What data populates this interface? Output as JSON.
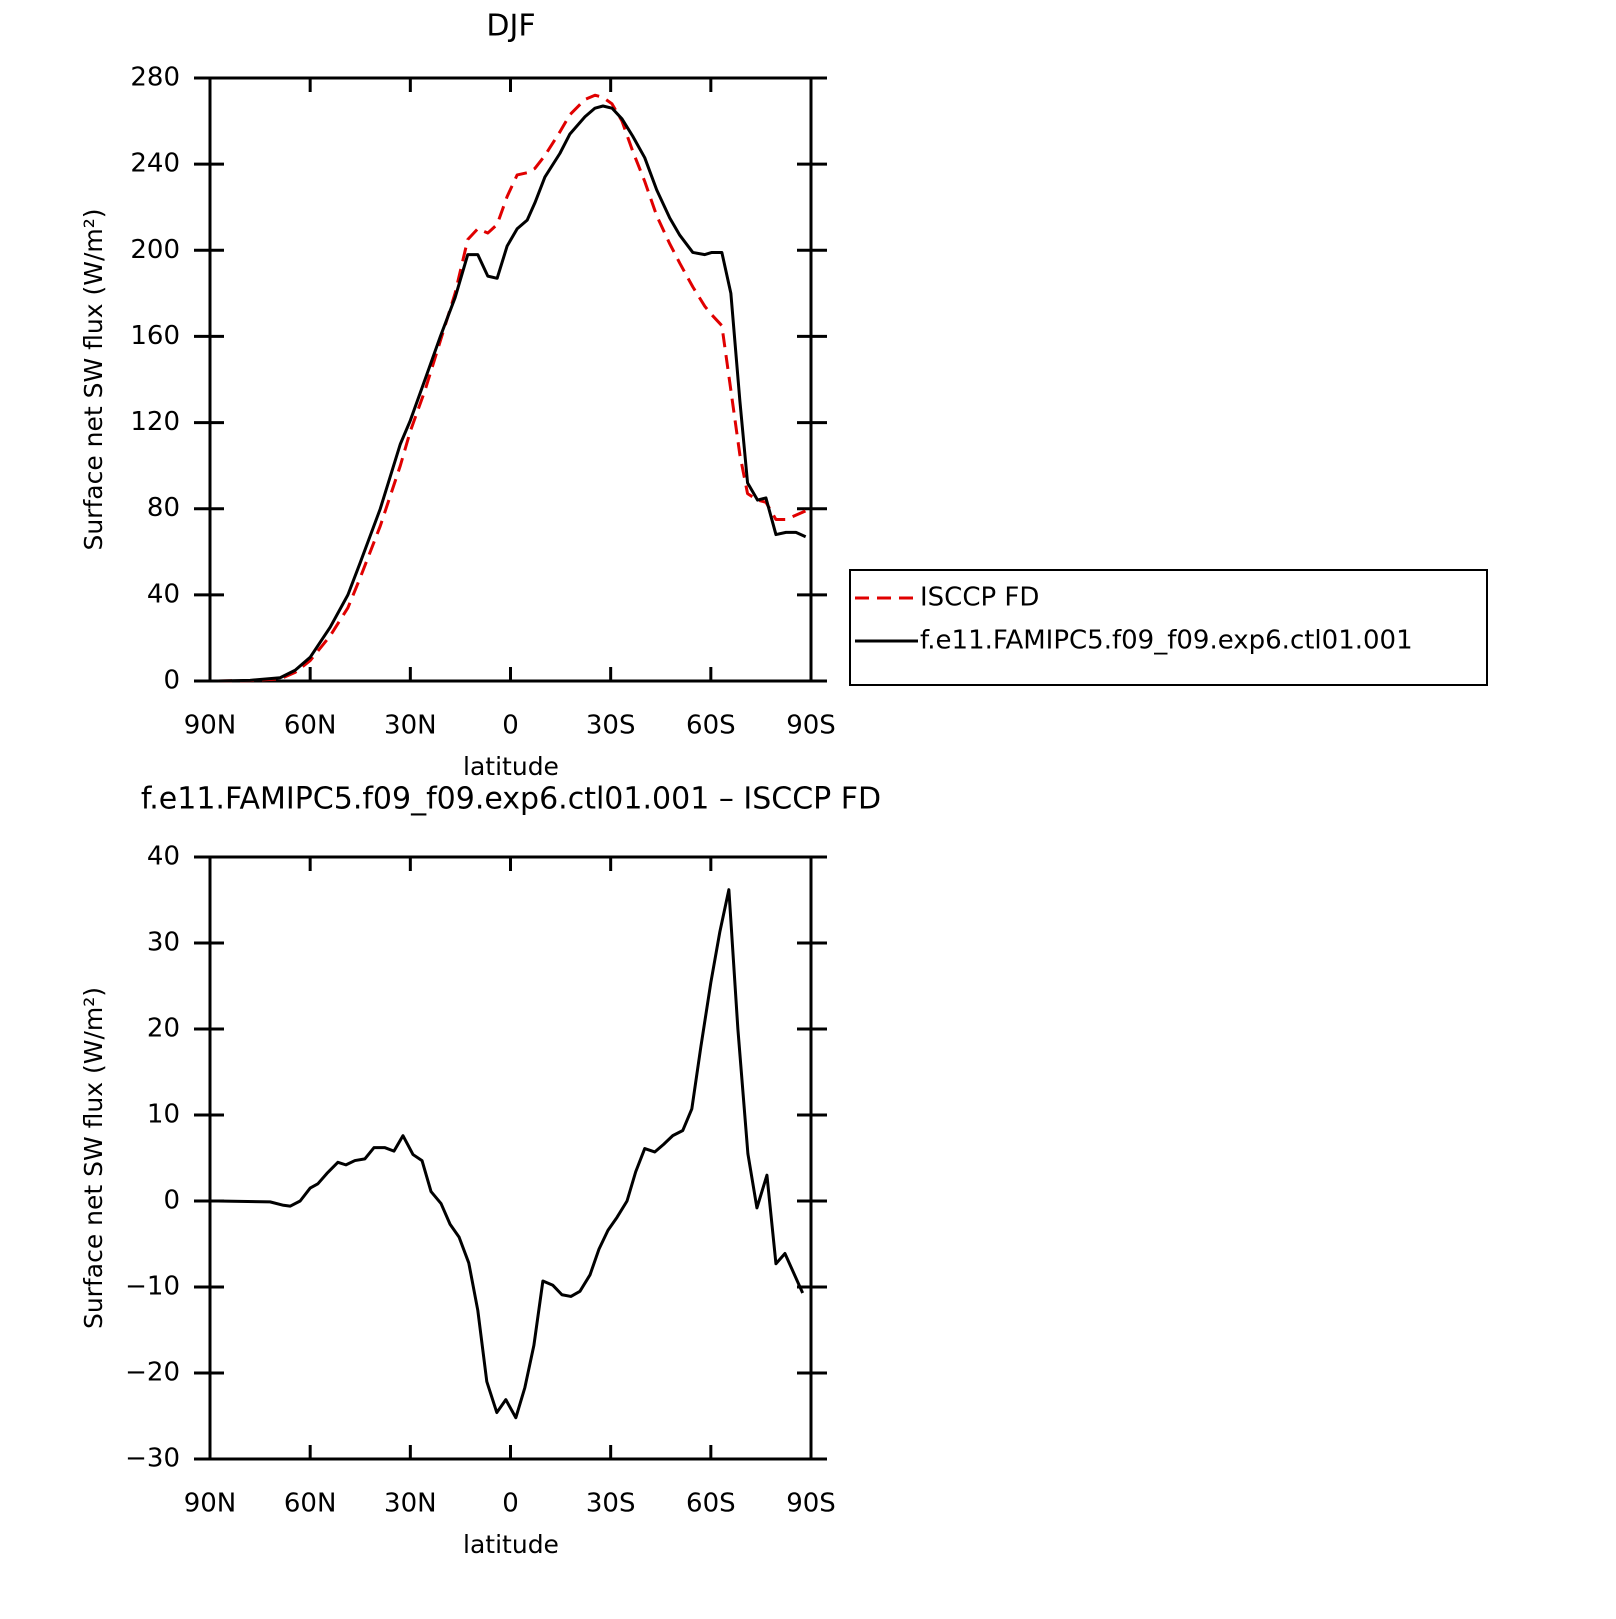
{
  "chart_data": [
    {
      "type": "line",
      "title": "DJF",
      "xlabel": "latitude",
      "ylabel": "Surface net SW flux (W/m²)",
      "x": [
        87.6,
        78,
        69,
        64.5,
        60,
        54,
        48.7,
        45,
        39,
        33,
        30,
        25.6,
        21,
        16.6,
        12.8,
        9.8,
        6.8,
        4,
        1,
        -2,
        -5,
        -7.3,
        -10.3,
        -14.8,
        -17.8,
        -22.3,
        -25.3,
        -27.7,
        -30.4,
        -33.4,
        -36.6,
        -40.2,
        -43.8,
        -47.7,
        -50.7,
        -54.6,
        -58.2,
        -60.3,
        -63.3,
        -66,
        -68.7,
        -71,
        -74,
        -76.5,
        -79.5,
        -82.5,
        -85.5,
        -88.4
      ],
      "series": [
        {
          "name": "ISCCP FD",
          "color": "#e00000",
          "dashed": true,
          "values": [
            0,
            0.2,
            1,
            4,
            9.5,
            21,
            34,
            48,
            72,
            100,
            116,
            135,
            158,
            180,
            205,
            210,
            208,
            212,
            225,
            235,
            236,
            238,
            244,
            255,
            263,
            270,
            272,
            271,
            268,
            260,
            246,
            232,
            216,
            203,
            194,
            183,
            174,
            170,
            165,
            135,
            105,
            87,
            84,
            83,
            75,
            75,
            77,
            79
          ]
        },
        {
          "name": "f.e11.FAMIPC5.f09_f09.exp6.ctl01.001",
          "color": "#000000",
          "dashed": false,
          "values": [
            0,
            0.3,
            1.5,
            5,
            11,
            25,
            40,
            55,
            80,
            110,
            121,
            140,
            160,
            178,
            198,
            198,
            188,
            187,
            202,
            210,
            214,
            222,
            234,
            245,
            254,
            262,
            266,
            267,
            266,
            261,
            253,
            243,
            228,
            215,
            207,
            199,
            198,
            199,
            199,
            180,
            130,
            92,
            84,
            85,
            68,
            69,
            69,
            67
          ]
        }
      ],
      "xlim": [
        90,
        -90
      ],
      "xticks": [
        {
          "value": 90,
          "label": "90N"
        },
        {
          "value": 60,
          "label": "60N"
        },
        {
          "value": 30,
          "label": "30N"
        },
        0,
        {
          "value": -30,
          "label": "30S"
        },
        {
          "value": -60,
          "label": "60S"
        },
        {
          "value": -90,
          "label": "90S"
        }
      ],
      "ylim": [
        0,
        280
      ],
      "yticks": [
        0,
        40,
        80,
        120,
        160,
        200,
        240,
        280
      ],
      "legend": "right"
    },
    {
      "type": "line",
      "title": "f.e11.FAMIPC5.f09_f09.exp6.ctl01.001 – ISCCP FD",
      "xlabel": "latitude",
      "ylabel": "Surface net SW flux (W/m²)",
      "x": [
        87.6,
        72,
        68,
        66,
        63,
        60,
        57.7,
        55,
        51.7,
        49.3,
        46.6,
        43.6,
        40.9,
        37.6,
        34.9,
        32.2,
        29.2,
        26.5,
        23.8,
        20.8,
        18.1,
        15.4,
        12.5,
        9.8,
        7.1,
        4.1,
        1.4,
        -1.6,
        -4.3,
        -7,
        -9.7,
        -12.7,
        -15.4,
        -18.1,
        -20.8,
        -23.8,
        -26.5,
        -29.2,
        -31.9,
        -34.9,
        -37.5,
        -40.2,
        -43.2,
        -45.9,
        -48.6,
        -51.6,
        -54.3,
        -57,
        -60,
        -62.7,
        -65.4,
        -68.1,
        -71.1,
        -73.8,
        -76.8,
        -79.5,
        -82.2,
        -87.5
      ],
      "series": [
        {
          "color": "#000000",
          "dashed": false,
          "values": [
            0,
            -0.1,
            -0.5,
            -0.6,
            0,
            1.5,
            2,
            3.2,
            4.5,
            4.2,
            4.7,
            4.9,
            6.2,
            6.2,
            5.8,
            7.6,
            5.4,
            4.7,
            1.1,
            -0.3,
            -2.7,
            -4.2,
            -7.2,
            -12.7,
            -21,
            -24.6,
            -23.1,
            -25.2,
            -21.7,
            -16.8,
            -9.3,
            -9.8,
            -10.9,
            -11.1,
            -10.5,
            -8.6,
            -5.6,
            -3.4,
            -1.9,
            0,
            3.4,
            6.1,
            5.7,
            6.6,
            7.6,
            8.2,
            10.7,
            17.9,
            25.4,
            31.3,
            36.2,
            20,
            5.5,
            -0.8,
            3,
            -7.3,
            -6.1,
            -10.7
          ]
        }
      ],
      "xlim": [
        90,
        -90
      ],
      "xticks": [
        {
          "value": 90,
          "label": "90N"
        },
        {
          "value": 60,
          "label": "60N"
        },
        {
          "value": 30,
          "label": "30N"
        },
        0,
        {
          "value": -30,
          "label": "30S"
        },
        {
          "value": -60,
          "label": "60S"
        },
        {
          "value": -90,
          "label": "90S"
        }
      ],
      "ylim": [
        -30,
        40
      ],
      "yticks": [
        {
          "value": -30,
          "label": "−30"
        },
        {
          "value": -20,
          "label": "−20"
        },
        {
          "value": -10,
          "label": "−10"
        },
        0,
        10,
        20,
        30,
        40
      ]
    }
  ]
}
